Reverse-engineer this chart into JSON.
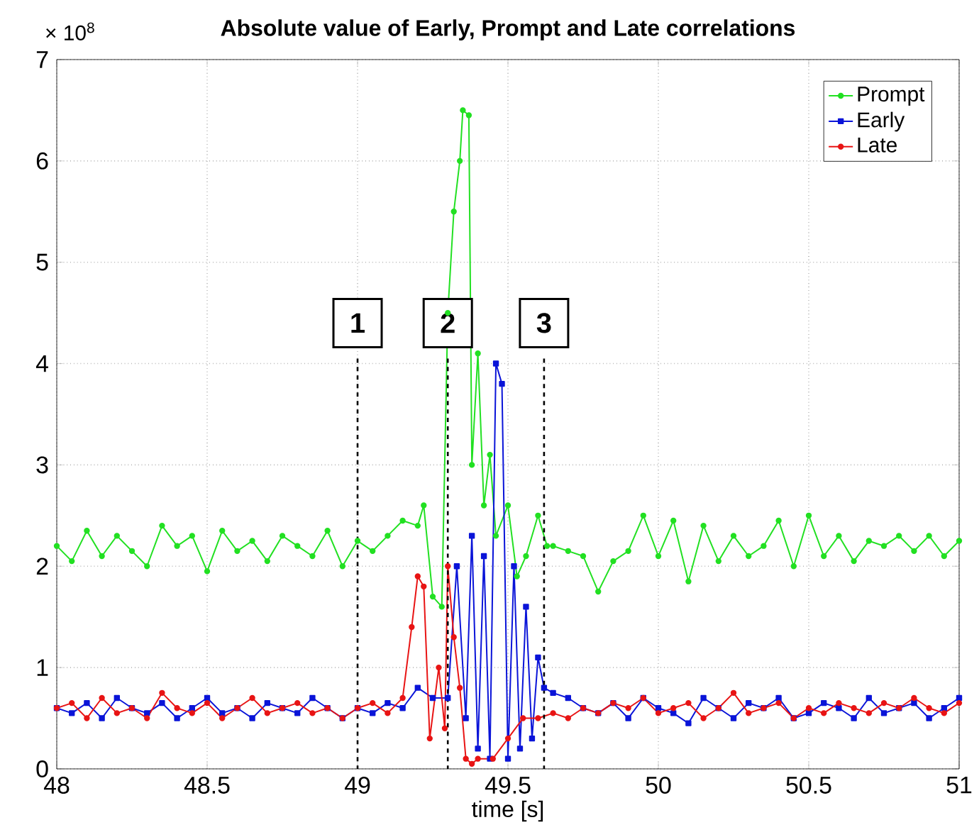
{
  "chart_data": {
    "type": "line",
    "title": "Absolute value of Early, Prompt and Late correlations",
    "xlabel": "time [s]",
    "annotations": [
      "× 10$^{8}$",
      {
        "text": "1",
        "x": 49,
        "y": 4.4
      },
      {
        "text": "2",
        "x": 49.3,
        "y": 4.4
      },
      {
        "text": "3",
        "x": 49.62,
        "y": 4.4
      }
    ],
    "xlim": [
      48,
      51
    ],
    "xticks": [
      48,
      48.5,
      49,
      49.5,
      50,
      50.5,
      51
    ],
    "ylim": [
      0,
      7
    ],
    "yticks": [
      0,
      1,
      2,
      3,
      4,
      5,
      6,
      7
    ],
    "grid": true,
    "legend": "top right",
    "line_style": "solid",
    "ref_lines": [
      {
        "axis": "x",
        "value": 49,
        "color": "#000000",
        "line_style": "dashed"
      },
      {
        "axis": "x",
        "value": 49.3,
        "color": "#000000",
        "line_style": "dashed"
      },
      {
        "axis": "x",
        "value": 49.62,
        "color": "#000000",
        "line_style": "dashed"
      }
    ],
    "series": [
      {
        "name": "Prompt",
        "color": "#22e022",
        "marker": "circle",
        "x": [
          48.0,
          48.05,
          48.1,
          48.15,
          48.2,
          48.25,
          48.3,
          48.35,
          48.4,
          48.45,
          48.5,
          48.55,
          48.6,
          48.65,
          48.7,
          48.75,
          48.8,
          48.85,
          48.9,
          48.95,
          49.0,
          49.05,
          49.1,
          49.15,
          49.2,
          49.22,
          49.25,
          49.28,
          49.3,
          49.32,
          49.34,
          49.35,
          49.37,
          49.38,
          49.4,
          49.42,
          49.44,
          49.46,
          49.5,
          49.53,
          49.56,
          49.6,
          49.63,
          49.65,
          49.7,
          49.75,
          49.8,
          49.85,
          49.9,
          49.95,
          50.0,
          50.05,
          50.1,
          50.15,
          50.2,
          50.25,
          50.3,
          50.35,
          50.4,
          50.45,
          50.5,
          50.55,
          50.6,
          50.65,
          50.7,
          50.75,
          50.8,
          50.85,
          50.9,
          50.95,
          51.0
        ],
        "values": [
          2.2,
          2.05,
          2.35,
          2.1,
          2.3,
          2.15,
          2.0,
          2.4,
          2.2,
          2.3,
          1.95,
          2.35,
          2.15,
          2.25,
          2.05,
          2.3,
          2.2,
          2.1,
          2.35,
          2.0,
          2.25,
          2.15,
          2.3,
          2.45,
          2.4,
          2.6,
          1.7,
          1.6,
          4.5,
          5.5,
          6.0,
          6.5,
          6.45,
          3.0,
          4.1,
          2.6,
          3.1,
          2.3,
          2.6,
          1.9,
          2.1,
          2.5,
          2.2,
          2.2,
          2.15,
          2.1,
          1.75,
          2.05,
          2.15,
          2.5,
          2.1,
          2.45,
          1.85,
          2.4,
          2.05,
          2.3,
          2.1,
          2.2,
          2.45,
          2.0,
          2.5,
          2.1,
          2.3,
          2.05,
          2.25,
          2.2,
          2.3,
          2.15,
          2.3,
          2.1,
          2.25
        ]
      },
      {
        "name": "Early",
        "color": "#0a14d8",
        "marker": "square",
        "x": [
          48.0,
          48.05,
          48.1,
          48.15,
          48.2,
          48.25,
          48.3,
          48.35,
          48.4,
          48.45,
          48.5,
          48.55,
          48.6,
          48.65,
          48.7,
          48.75,
          48.8,
          48.85,
          48.9,
          48.95,
          49.0,
          49.05,
          49.1,
          49.15,
          49.2,
          49.25,
          49.3,
          49.33,
          49.36,
          49.38,
          49.4,
          49.42,
          49.44,
          49.46,
          49.48,
          49.5,
          49.52,
          49.54,
          49.56,
          49.58,
          49.6,
          49.62,
          49.65,
          49.7,
          49.75,
          49.8,
          49.85,
          49.9,
          49.95,
          50.0,
          50.05,
          50.1,
          50.15,
          50.2,
          50.25,
          50.3,
          50.35,
          50.4,
          50.45,
          50.5,
          50.55,
          50.6,
          50.65,
          50.7,
          50.75,
          50.8,
          50.85,
          50.9,
          50.95,
          51.0
        ],
        "values": [
          0.6,
          0.55,
          0.65,
          0.5,
          0.7,
          0.6,
          0.55,
          0.65,
          0.5,
          0.6,
          0.7,
          0.55,
          0.6,
          0.5,
          0.65,
          0.6,
          0.55,
          0.7,
          0.6,
          0.5,
          0.6,
          0.55,
          0.65,
          0.6,
          0.8,
          0.7,
          0.7,
          2.0,
          0.5,
          2.3,
          0.2,
          2.1,
          0.1,
          4.0,
          3.8,
          0.1,
          2.0,
          0.2,
          1.6,
          0.3,
          1.1,
          0.8,
          0.75,
          0.7,
          0.6,
          0.55,
          0.65,
          0.5,
          0.7,
          0.6,
          0.55,
          0.45,
          0.7,
          0.6,
          0.5,
          0.65,
          0.6,
          0.7,
          0.5,
          0.55,
          0.65,
          0.6,
          0.5,
          0.7,
          0.55,
          0.6,
          0.65,
          0.5,
          0.6,
          0.7
        ]
      },
      {
        "name": "Late",
        "color": "#e81414",
        "marker": "circle",
        "x": [
          48.0,
          48.05,
          48.1,
          48.15,
          48.2,
          48.25,
          48.3,
          48.35,
          48.4,
          48.45,
          48.5,
          48.55,
          48.6,
          48.65,
          48.7,
          48.75,
          48.8,
          48.85,
          48.9,
          48.95,
          49.0,
          49.05,
          49.1,
          49.15,
          49.18,
          49.2,
          49.22,
          49.24,
          49.27,
          49.29,
          49.3,
          49.32,
          49.34,
          49.36,
          49.38,
          49.4,
          49.45,
          49.5,
          49.55,
          49.6,
          49.65,
          49.7,
          49.75,
          49.8,
          49.85,
          49.9,
          49.95,
          50.0,
          50.05,
          50.1,
          50.15,
          50.2,
          50.25,
          50.3,
          50.35,
          50.4,
          50.45,
          50.5,
          50.55,
          50.6,
          50.65,
          50.7,
          50.75,
          50.8,
          50.85,
          50.9,
          50.95,
          51.0
        ],
        "values": [
          0.6,
          0.65,
          0.5,
          0.7,
          0.55,
          0.6,
          0.5,
          0.75,
          0.6,
          0.55,
          0.65,
          0.5,
          0.6,
          0.7,
          0.55,
          0.6,
          0.65,
          0.55,
          0.6,
          0.5,
          0.6,
          0.65,
          0.55,
          0.7,
          1.4,
          1.9,
          1.8,
          0.3,
          1.0,
          0.4,
          2.0,
          1.3,
          0.8,
          0.1,
          0.05,
          0.1,
          0.1,
          0.3,
          0.5,
          0.5,
          0.55,
          0.5,
          0.6,
          0.55,
          0.65,
          0.6,
          0.7,
          0.55,
          0.6,
          0.65,
          0.5,
          0.6,
          0.75,
          0.55,
          0.6,
          0.65,
          0.5,
          0.6,
          0.55,
          0.65,
          0.6,
          0.55,
          0.65,
          0.6,
          0.7,
          0.6,
          0.55,
          0.65
        ]
      }
    ]
  }
}
